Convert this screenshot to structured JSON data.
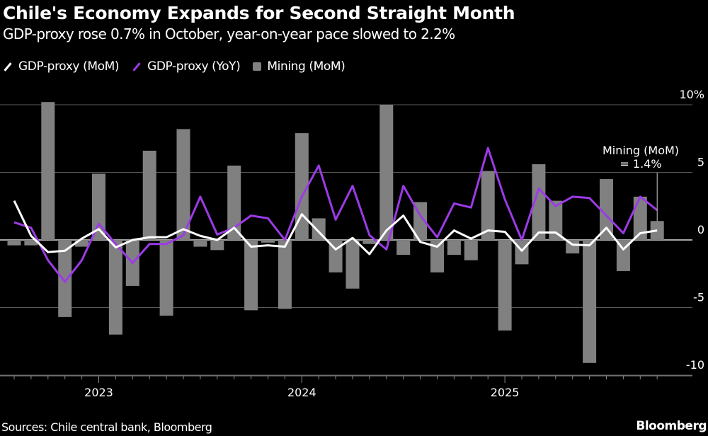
{
  "title": "Chile's Economy Expands for Second Straight Month",
  "subtitle": "GDP-proxy rose 0.7% in October, year-on-year pace slowed to 2.2%",
  "source": "Sources: Chile central bank, Bloomberg",
  "brand": "Bloomberg",
  "colors": {
    "background": "#000000",
    "mom": "#ffffff",
    "yoy": "#9b3be6",
    "mining": "#808080",
    "grid": "#5a5a5a"
  },
  "chart_data": {
    "type": "bar+line",
    "legend_position": "top-left",
    "grid": true,
    "y_axis": {
      "position": "right",
      "ylim": [
        -10,
        10
      ],
      "ticks": [
        10,
        5,
        0,
        -5,
        -10
      ],
      "tick_labels": [
        "10%",
        "5",
        "0",
        "-5",
        "-10"
      ]
    },
    "x_axis": {
      "range": [
        "2022-08",
        "2025-10"
      ],
      "tick_labels": [
        {
          "label": "2023",
          "month": "2023-01"
        },
        {
          "label": "2024",
          "month": "2024-01"
        },
        {
          "label": "2025",
          "month": "2025-01"
        }
      ]
    },
    "months": [
      "2022-08",
      "2022-09",
      "2022-10",
      "2022-11",
      "2022-12",
      "2023-01",
      "2023-02",
      "2023-03",
      "2023-04",
      "2023-05",
      "2023-06",
      "2023-07",
      "2023-08",
      "2023-09",
      "2023-10",
      "2023-11",
      "2023-12",
      "2024-01",
      "2024-02",
      "2024-03",
      "2024-04",
      "2024-05",
      "2024-06",
      "2024-07",
      "2024-08",
      "2024-09",
      "2024-10",
      "2024-11",
      "2024-12",
      "2025-01",
      "2025-02",
      "2025-03",
      "2025-04",
      "2025-05",
      "2025-06",
      "2025-07",
      "2025-08",
      "2025-09",
      "2025-10"
    ],
    "series": [
      {
        "name": "GDP-proxy (MoM)",
        "type": "line",
        "values": [
          2.9,
          0.3,
          -0.9,
          -0.8,
          0.1,
          0.8,
          -0.55,
          0.0,
          0.2,
          0.2,
          0.8,
          0.3,
          0.0,
          0.9,
          -0.5,
          -0.4,
          -0.5,
          1.9,
          0.6,
          -0.7,
          0.15,
          -1.05,
          0.7,
          1.8,
          -0.15,
          -0.5,
          0.7,
          0.1,
          0.7,
          0.6,
          -0.8,
          0.55,
          0.55,
          -0.35,
          -0.4,
          0.9,
          -0.7,
          0.5,
          0.7
        ]
      },
      {
        "name": "GDP-proxy (YoY)",
        "type": "line",
        "values": [
          1.3,
          0.9,
          -1.5,
          -3.1,
          -1.5,
          1.2,
          -0.3,
          -1.7,
          -0.3,
          -0.3,
          0.35,
          3.2,
          0.4,
          0.9,
          1.8,
          1.6,
          0.0,
          3.2,
          5.5,
          1.5,
          4.0,
          0.35,
          -0.7,
          4.0,
          1.8,
          0.2,
          2.7,
          2.4,
          6.8,
          3.0,
          0.0,
          3.8,
          2.5,
          3.2,
          3.1,
          1.8,
          0.5,
          3.2,
          2.2
        ]
      },
      {
        "name": "Mining (MoM)",
        "type": "bar",
        "values": [
          -0.4,
          -0.4,
          10.2,
          -5.7,
          -0.5,
          4.9,
          -7.0,
          -3.4,
          6.6,
          -5.6,
          8.2,
          -0.5,
          -0.75,
          5.5,
          -5.2,
          -0.2,
          -5.1,
          7.9,
          1.6,
          -2.4,
          -3.6,
          -0.3,
          10.0,
          -1.1,
          2.8,
          -2.4,
          -1.1,
          -1.5,
          5.1,
          -6.7,
          -1.8,
          5.6,
          2.9,
          -1.0,
          -9.1,
          4.5,
          -2.3,
          3.2,
          1.4
        ]
      }
    ],
    "annotation": {
      "line1": "Mining (MoM)",
      "line2": "= 1.4%",
      "month": "2025-10"
    }
  }
}
